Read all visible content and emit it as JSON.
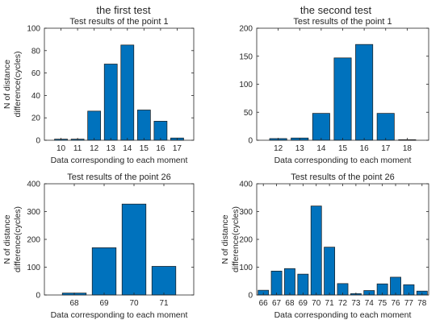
{
  "headings": {
    "left": "the first test",
    "right": "the second test"
  },
  "colors": {
    "bar": "#0072BD",
    "axis": "#262626"
  },
  "chart_data": [
    {
      "id": "tl",
      "type": "bar",
      "title": "Test results of the point 1",
      "xlabel": "Data corresponding to each moment",
      "ylabel": [
        "N of distance",
        "difference(cycles)"
      ],
      "categories": [
        "10",
        "11",
        "12",
        "13",
        "14",
        "15",
        "16",
        "17"
      ],
      "values": [
        1,
        1,
        26,
        68,
        85,
        27,
        17,
        2
      ],
      "ylim": [
        0,
        100
      ],
      "yticks": [
        0,
        20,
        40,
        60,
        80,
        100
      ],
      "xlim": [
        9,
        18
      ],
      "grid": false
    },
    {
      "id": "tr",
      "type": "bar",
      "title": "Test results of the point 1",
      "xlabel": "Data corresponding to each moment",
      "ylabel": [],
      "categories": [
        "12",
        "13",
        "14",
        "15",
        "16",
        "17",
        "18"
      ],
      "values": [
        3,
        4,
        48,
        147,
        171,
        48,
        1
      ],
      "ylim": [
        0,
        200
      ],
      "yticks": [
        0,
        50,
        100,
        150,
        200
      ],
      "xlim": [
        11,
        19
      ],
      "grid": false
    },
    {
      "id": "bl",
      "type": "bar",
      "title": "Test results of the point 26",
      "xlabel": "Data corresponding to each moment",
      "ylabel": [
        "N of distance",
        "difference(cycles)"
      ],
      "categories": [
        "68",
        "69",
        "70",
        "71"
      ],
      "values": [
        7,
        170,
        327,
        103
      ],
      "ylim": [
        0,
        400
      ],
      "yticks": [
        0,
        100,
        200,
        300,
        400
      ],
      "xlim": [
        67,
        72
      ],
      "grid": false
    },
    {
      "id": "br",
      "type": "bar",
      "title": "Test results of the point 26",
      "xlabel": "Data corresponding to each moment",
      "ylabel": [
        "N of distance",
        "difference(cycles)"
      ],
      "categories": [
        "66",
        "67",
        "68",
        "69",
        "70",
        "71",
        "72",
        "73",
        "74",
        "75",
        "76",
        "77",
        "78"
      ],
      "values": [
        17,
        86,
        95,
        75,
        320,
        172,
        41,
        5,
        16,
        40,
        64,
        37,
        14
      ],
      "ylim": [
        0,
        400
      ],
      "yticks": [
        0,
        100,
        200,
        300,
        400
      ],
      "xlim": [
        65.5,
        78.5
      ],
      "grid": false
    }
  ]
}
